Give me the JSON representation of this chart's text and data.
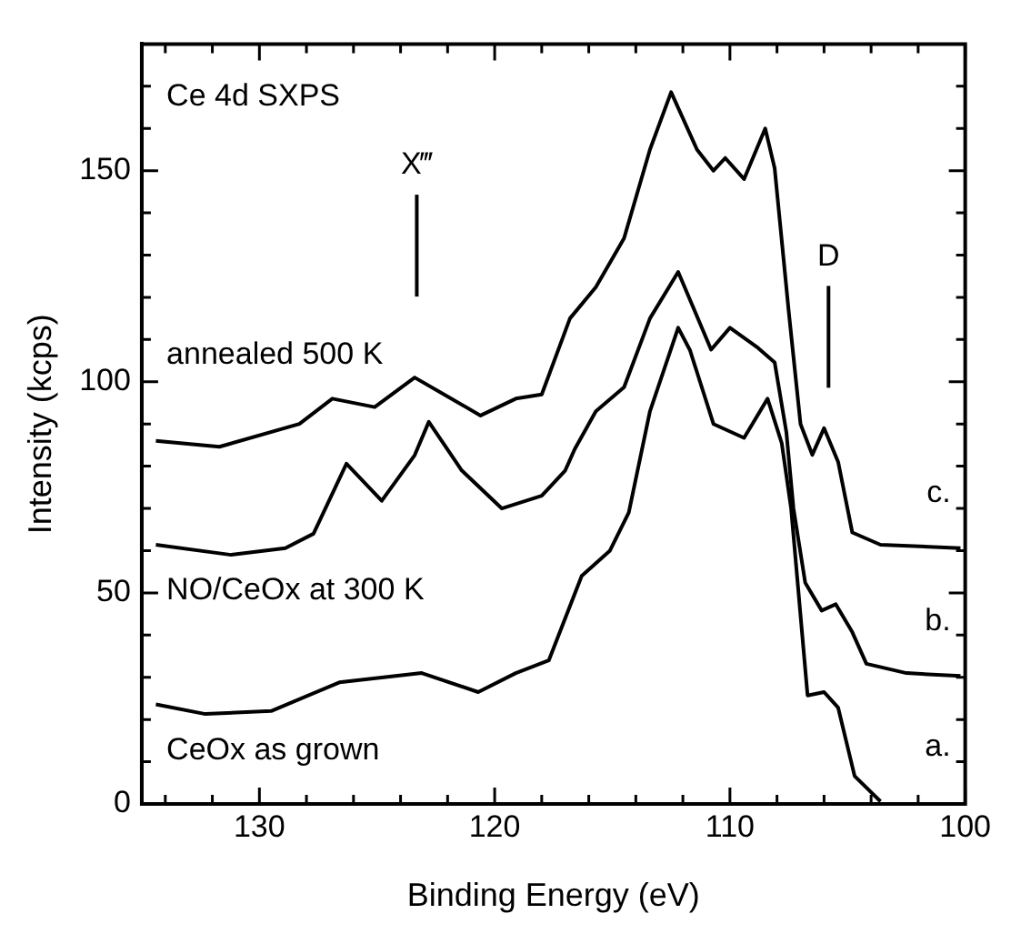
{
  "chart_data": {
    "type": "line",
    "xlabel": "Binding Energy (eV)",
    "ylabel": "Intensity (kcps)",
    "xlim": [
      135,
      100
    ],
    "ylim": [
      0,
      180
    ],
    "xticks": [
      {
        "value": 134,
        "label": null
      },
      {
        "value": 132,
        "label": null
      },
      130,
      {
        "value": 128,
        "label": null
      },
      {
        "value": 126,
        "label": null
      },
      {
        "value": 124,
        "label": null
      },
      {
        "value": 122,
        "label": null
      },
      120,
      {
        "value": 118,
        "label": null
      },
      {
        "value": 116,
        "label": null
      },
      {
        "value": 114,
        "label": null
      },
      {
        "value": 112,
        "label": null
      },
      110,
      {
        "value": 108,
        "label": null
      },
      {
        "value": 106,
        "label": null
      },
      {
        "value": 104,
        "label": null
      },
      {
        "value": 102,
        "label": null
      },
      100
    ],
    "yticks": [
      0,
      {
        "value": 10,
        "label": null
      },
      {
        "value": 20,
        "label": null
      },
      {
        "value": 30,
        "label": null
      },
      {
        "value": 40,
        "label": null
      },
      50,
      {
        "value": 60,
        "label": null
      },
      {
        "value": 70,
        "label": null
      },
      {
        "value": 80,
        "label": null
      },
      {
        "value": 90,
        "label": null
      },
      100,
      {
        "value": 110,
        "label": null
      },
      {
        "value": 120,
        "label": null
      },
      {
        "value": 130,
        "label": null
      },
      {
        "value": 140,
        "label": null
      },
      150,
      {
        "value": 160,
        "label": null
      },
      {
        "value": 170,
        "label": null
      }
    ],
    "grid": false,
    "legend": "right",
    "marker": "none",
    "line_style": "solid",
    "series": [
      {
        "name": "c.",
        "color": "#000000",
        "x": [
          134.4,
          131.7,
          128.3,
          126.9,
          125.1,
          123.4,
          122.0,
          120.6,
          119.1,
          118.0,
          116.8,
          115.7,
          114.5,
          113.4,
          112.5,
          111.4,
          110.7,
          110.2,
          109.4,
          108.5,
          108.1,
          107.5,
          107.0,
          106.5,
          106.0,
          105.4,
          104.8,
          103.6,
          100.2
        ],
        "values": [
          86,
          84.6,
          90,
          96,
          94,
          101,
          96.5,
          92,
          96,
          97,
          115,
          122.4,
          134,
          155,
          168.6,
          155,
          150,
          153,
          148,
          160,
          150.6,
          116.6,
          90,
          82.7,
          89,
          81,
          64.3,
          61.4,
          60.6
        ]
      },
      {
        "name": "b.",
        "color": "#000000",
        "x": [
          134.4,
          131.2,
          128.9,
          127.7,
          126.3,
          124.8,
          123.4,
          122.8,
          121.4,
          119.7,
          118.0,
          117.0,
          116.6,
          115.7,
          114.5,
          113.4,
          112.2,
          110.8,
          110.0,
          108.8,
          108.1,
          107.6,
          107.3,
          106.8,
          106.1,
          105.5,
          104.8,
          104.2,
          102.5,
          100.2
        ],
        "values": [
          61.4,
          59,
          60.6,
          64,
          80.6,
          71.8,
          82.6,
          90.5,
          79,
          70,
          73,
          79,
          84,
          93,
          98.7,
          115,
          126,
          107.6,
          112.8,
          108,
          104.6,
          88,
          70,
          52.4,
          45.8,
          47.3,
          40.7,
          33.2,
          31,
          30.3
        ]
      },
      {
        "name": "a.",
        "color": "#000000",
        "x": [
          134.4,
          132.3,
          129.5,
          126.6,
          123.1,
          120.7,
          119.1,
          117.7,
          116.3,
          115.1,
          114.3,
          113.4,
          112.2,
          111.7,
          110.7,
          109.4,
          108.4,
          107.8,
          107.4,
          106.7,
          106.0,
          105.4,
          104.7,
          103.6
        ],
        "values": [
          23.6,
          21.3,
          22,
          28.8,
          31,
          26.5,
          31,
          34,
          54,
          60,
          69,
          93,
          112.8,
          107.5,
          90,
          86.7,
          96,
          85.5,
          70,
          25.7,
          26.5,
          22.8,
          6.6,
          0.6
        ]
      }
    ],
    "annotations": [
      "Ce 4d SXPS",
      "annealed 500 K",
      "NO/CeOx at 300 K",
      "CeOx as grown",
      "X‴",
      "D"
    ]
  }
}
